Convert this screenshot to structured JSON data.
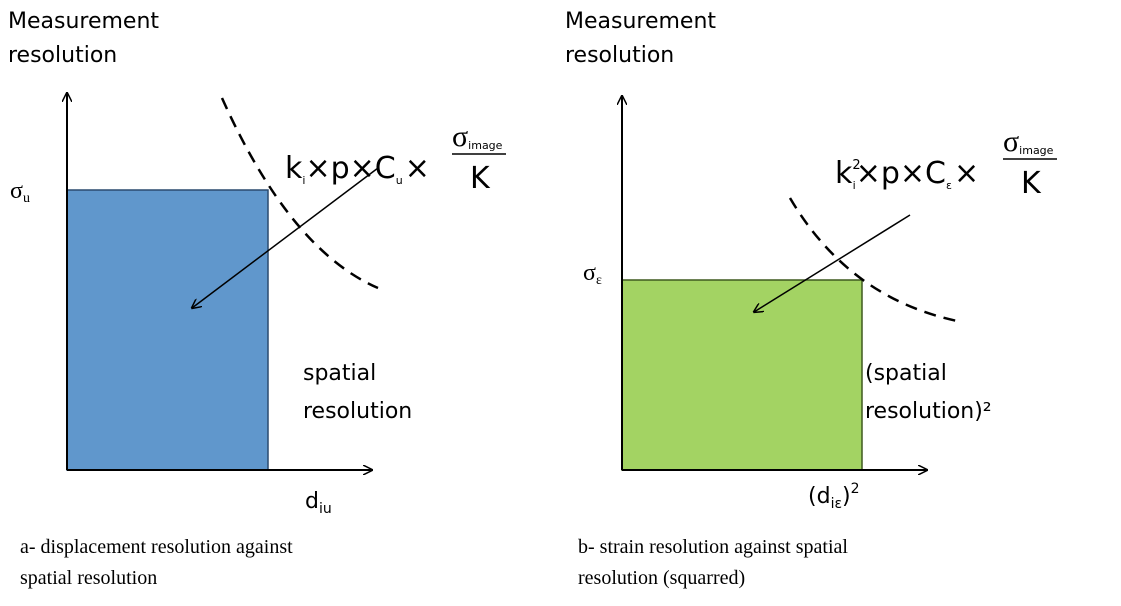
{
  "panels": [
    {
      "y_axis_label": [
        "Measurement",
        "resolution"
      ],
      "y_value_label": {
        "symbol": "σ",
        "sub": "u"
      },
      "formula": {
        "k": "k",
        "k_sup": "",
        "k_sub": "i",
        "middle": "×p×C",
        "c_sub": "u",
        "times": "×",
        "numerator": "σ",
        "numerator_sub": "image",
        "denominator": "K"
      },
      "region_label": [
        "spatial",
        "resolution"
      ],
      "x_value_label": {
        "open": "",
        "base": "d",
        "sub": "iu",
        "close": "",
        "sup": ""
      },
      "caption": [
        "a- displacement resolution against",
        "spatial resolution"
      ]
    },
    {
      "y_axis_label": [
        "Measurement",
        "resolution"
      ],
      "y_value_label": {
        "symbol": "σ",
        "sub": "ε"
      },
      "formula": {
        "k": "k",
        "k_sup": "2",
        "k_sub": "i",
        "middle": "×p×C",
        "c_sub": "ε",
        "times": "×",
        "numerator": "σ",
        "numerator_sub": "image",
        "denominator": "K"
      },
      "region_label": [
        "(spatial",
        "resolution)²"
      ],
      "x_value_label": {
        "open": "(",
        "base": "d",
        "sub": "iε",
        "close": ")",
        "sup": "2"
      },
      "caption": [
        "b- strain resolution against spatial",
        "resolution (squarred)"
      ]
    }
  ]
}
